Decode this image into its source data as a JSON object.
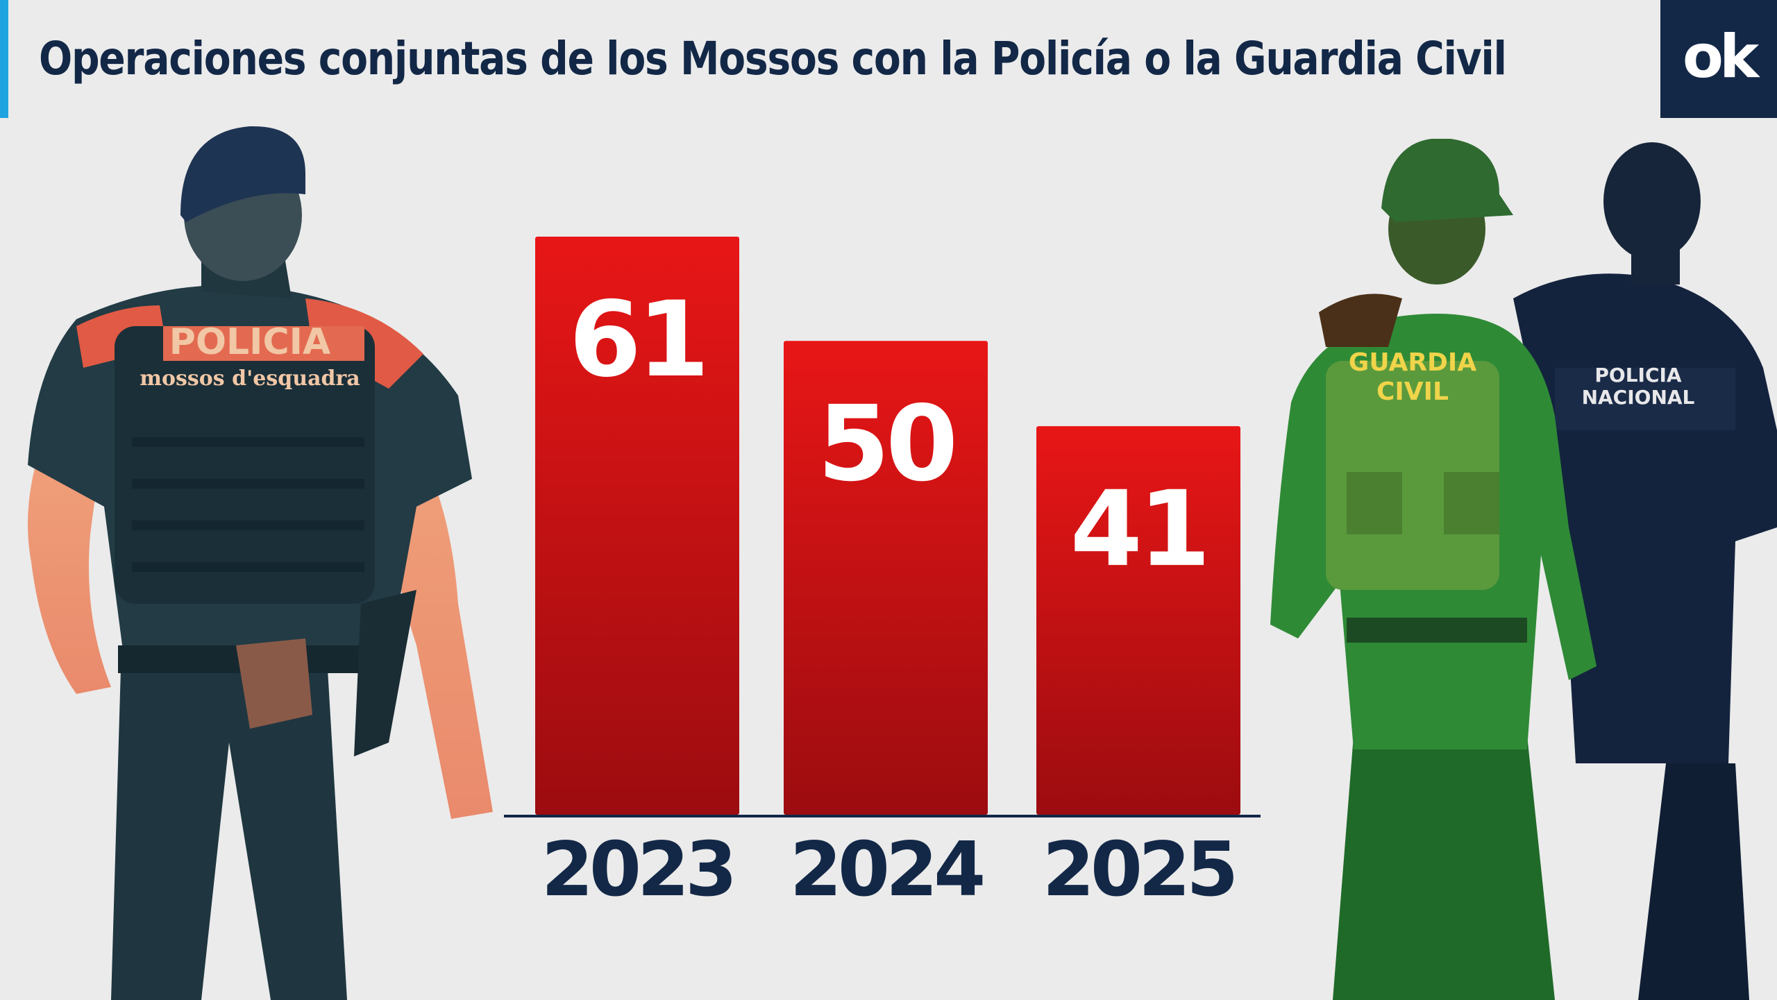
{
  "header": {
    "title": "Operaciones conjuntas de los Mossos con la Policía o la Guardia Civil",
    "logo_text": "ok"
  },
  "photos": {
    "left": {
      "vest_text_1": "POLICIA",
      "vest_text_2": "mossos d'esquadra"
    },
    "right": {
      "guardia_text_1": "GUARDIA",
      "guardia_text_2": "CIVIL",
      "nacional_text_1": "POLICIA",
      "nacional_text_2": "NACIONAL"
    }
  },
  "colors": {
    "title": "#132847",
    "accent": "#1fa3e0",
    "bar_top": "#e81616",
    "bar_bottom": "#9c0c10",
    "axis": "#132847",
    "logo_bg": "#132847"
  },
  "chart_data": {
    "type": "bar",
    "title": "Operaciones conjuntas de los Mossos con la Policía o la Guardia Civil",
    "categories": [
      "2023",
      "2024",
      "2025"
    ],
    "values": [
      61,
      50,
      41
    ],
    "data_labels": [
      "61",
      "50",
      "41"
    ],
    "xlabel": "",
    "ylabel": "",
    "ylim": [
      0,
      61
    ],
    "grid": false,
    "legend": "none"
  }
}
